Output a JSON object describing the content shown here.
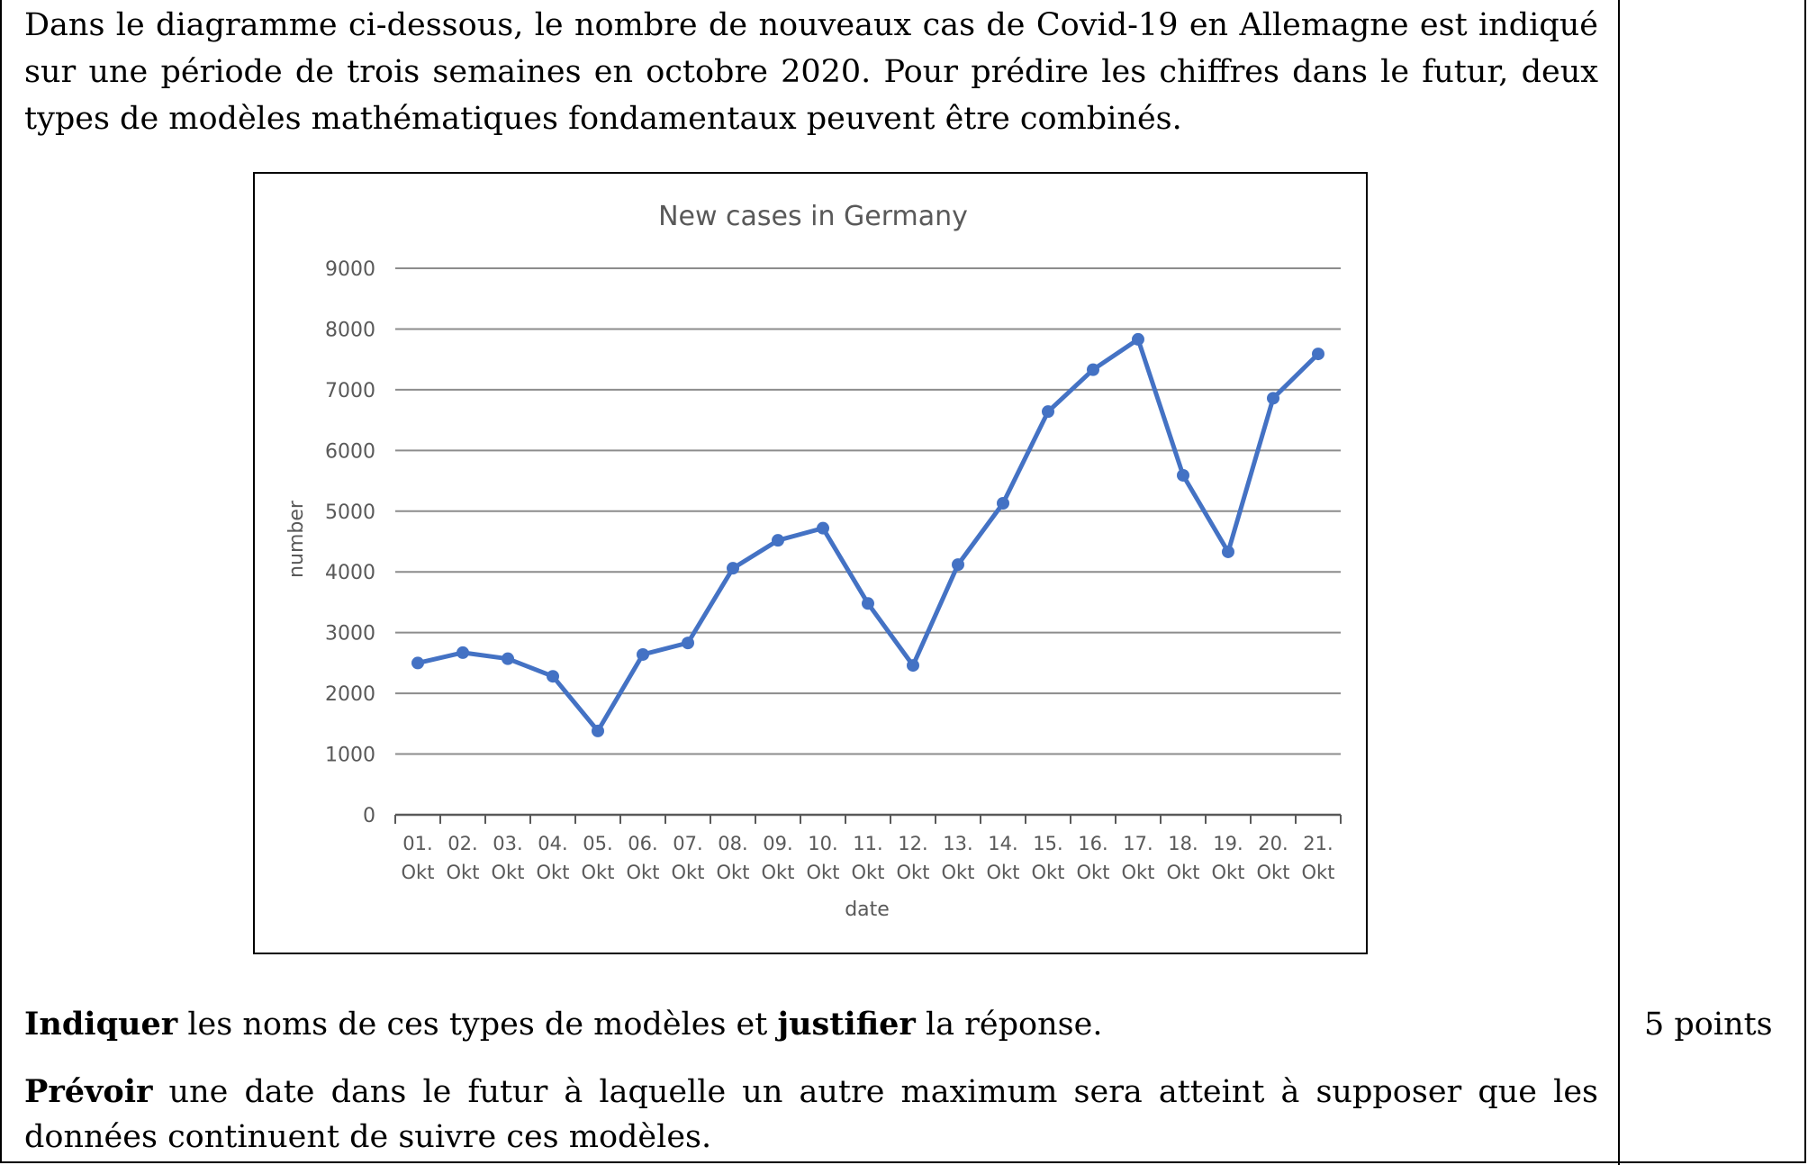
{
  "intro": "Dans le diagramme ci-dessous, le nombre de nouveaux cas de Covid-19 en Allemagne est indiqué sur une période de trois semaines en octobre 2020. Pour prédire les chiffres dans le futur, deux types de modèles mathématiques fondamentaux peuvent être combinés.",
  "question1": {
    "bold1": "Indiquer",
    "text1": " les noms de ces types de modèles et ",
    "bold2": "justifier",
    "text2": " la réponse."
  },
  "question2": {
    "bold": "Prévoir",
    "text": " une date dans le futur à laquelle un autre maximum sera atteint à supposer que les données continuent de suivre ces modèles."
  },
  "points": "5 points",
  "colors": {
    "series": "#4472C4",
    "grid": "#8C8C8C",
    "text": "#595959"
  },
  "chart_data": {
    "type": "line",
    "title": "New cases in Germany",
    "xlabel": "date",
    "ylabel": "number",
    "ylim": [
      0,
      9000
    ],
    "yticks": [
      0,
      1000,
      2000,
      3000,
      4000,
      5000,
      6000,
      7000,
      8000,
      9000
    ],
    "grid": true,
    "categories": [
      [
        "01.",
        "Okt"
      ],
      [
        "02.",
        "Okt"
      ],
      [
        "03.",
        "Okt"
      ],
      [
        "04.",
        "Okt"
      ],
      [
        "05.",
        "Okt"
      ],
      [
        "06.",
        "Okt"
      ],
      [
        "07.",
        "Okt"
      ],
      [
        "08.",
        "Okt"
      ],
      [
        "09.",
        "Okt"
      ],
      [
        "10.",
        "Okt"
      ],
      [
        "11.",
        "Okt"
      ],
      [
        "12.",
        "Okt"
      ],
      [
        "13.",
        "Okt"
      ],
      [
        "14.",
        "Okt"
      ],
      [
        "15.",
        "Okt"
      ],
      [
        "16.",
        "Okt"
      ],
      [
        "17.",
        "Okt"
      ],
      [
        "18.",
        "Okt"
      ],
      [
        "19.",
        "Okt"
      ],
      [
        "20.",
        "Okt"
      ],
      [
        "21.",
        "Okt"
      ]
    ],
    "series": [
      {
        "values": [
          2500,
          2670,
          2570,
          2280,
          1380,
          2640,
          2830,
          4060,
          4520,
          4720,
          3480,
          2460,
          4120,
          5130,
          6640,
          7330,
          7830,
          5590,
          4330,
          6860,
          7590
        ]
      }
    ]
  }
}
